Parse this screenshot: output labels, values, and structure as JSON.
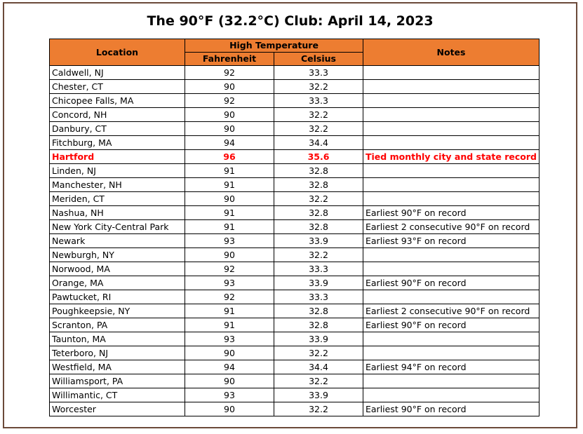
{
  "title": "The 90°F (32.2°C) Club: April 14, 2023",
  "headers": {
    "location": "Location",
    "high_temperature": "High Temperature",
    "fahrenheit": "Fahrenheit",
    "celsius": "Celsius",
    "notes": "Notes"
  },
  "colors": {
    "header_fill": "#ed7d31",
    "highlight_text": "#ff0000"
  },
  "rows": [
    {
      "location": "Caldwell, NJ",
      "f": "92",
      "c": "33.3",
      "notes": ""
    },
    {
      "location": "Chester, CT",
      "f": "90",
      "c": "32.2",
      "notes": ""
    },
    {
      "location": "Chicopee Falls, MA",
      "f": "92",
      "c": "33.3",
      "notes": ""
    },
    {
      "location": "Concord, NH",
      "f": "90",
      "c": "32.2",
      "notes": ""
    },
    {
      "location": "Danbury, CT",
      "f": "90",
      "c": "32.2",
      "notes": ""
    },
    {
      "location": "Fitchburg, MA",
      "f": "94",
      "c": "34.4",
      "notes": ""
    },
    {
      "location": "Hartford",
      "f": "96",
      "c": "35.6",
      "notes": "Tied monthly city and state record",
      "highlight": true
    },
    {
      "location": "Linden, NJ",
      "f": "91",
      "c": "32.8",
      "notes": ""
    },
    {
      "location": "Manchester, NH",
      "f": "91",
      "c": "32.8",
      "notes": ""
    },
    {
      "location": "Meriden, CT",
      "f": "90",
      "c": "32.2",
      "notes": ""
    },
    {
      "location": "Nashua, NH",
      "f": "91",
      "c": "32.8",
      "notes": "Earliest 90°F on record"
    },
    {
      "location": "New York City-Central Park",
      "f": "91",
      "c": "32.8",
      "notes": "Earliest 2 consecutive 90°F on record"
    },
    {
      "location": "Newark",
      "f": "93",
      "c": "33.9",
      "notes": "Earliest 93°F on record"
    },
    {
      "location": "Newburgh, NY",
      "f": "90",
      "c": "32.2",
      "notes": ""
    },
    {
      "location": "Norwood, MA",
      "f": "92",
      "c": "33.3",
      "notes": ""
    },
    {
      "location": "Orange, MA",
      "f": "93",
      "c": "33.9",
      "notes": "Earliest 90°F on record"
    },
    {
      "location": "Pawtucket, RI",
      "f": "92",
      "c": "33.3",
      "notes": ""
    },
    {
      "location": "Poughkeepsie, NY",
      "f": "91",
      "c": "32.8",
      "notes": "Earliest 2 consecutive 90°F on record"
    },
    {
      "location": "Scranton, PA",
      "f": "91",
      "c": "32.8",
      "notes": "Earliest 90°F on record"
    },
    {
      "location": "Taunton, MA",
      "f": "93",
      "c": "33.9",
      "notes": ""
    },
    {
      "location": "Teterboro, NJ",
      "f": "90",
      "c": "32.2",
      "notes": ""
    },
    {
      "location": "Westfield, MA",
      "f": "94",
      "c": "34.4",
      "notes": "Earliest 94°F on record"
    },
    {
      "location": "Williamsport, PA",
      "f": "90",
      "c": "32.2",
      "notes": ""
    },
    {
      "location": "Willimantic, CT",
      "f": "93",
      "c": "33.9",
      "notes": ""
    },
    {
      "location": "Worcester",
      "f": "90",
      "c": "32.2",
      "notes": "Earliest 90°F on record"
    }
  ]
}
